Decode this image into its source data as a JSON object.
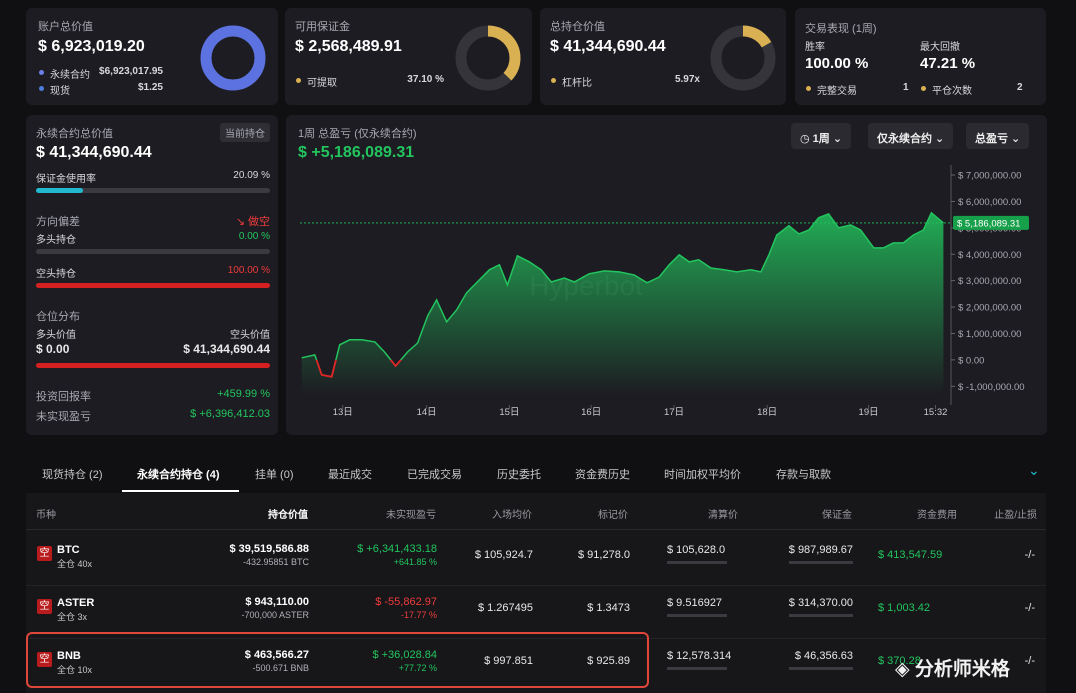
{
  "cards": {
    "account": {
      "title": "账户总价值",
      "value": "$ 6,923,019.20",
      "perp_label": "永续合约",
      "perp": {
        "value": 6923017.95,
        "label": "$6,923,017.95"
      },
      "spot_label": "现货",
      "spot": {
        "value": 1.25,
        "label": "$1.25"
      }
    },
    "margin": {
      "title": "可用保证金",
      "value": "$ 2,568,489.91",
      "withdraw_label": "可提取",
      "withdraw": {
        "value": 37.1,
        "label": "37.10 %"
      }
    },
    "position": {
      "title": "总持仓价值",
      "value": "$ 41,344,690.44",
      "leverage_label": "杠杆比",
      "leverage": {
        "value": 5.97,
        "label": "5.97x"
      }
    },
    "performance": {
      "title": "交易表现 (1周)",
      "winrate_label": "胜率",
      "winrate": "100.00 %",
      "drawdown_label": "最大回撤",
      "drawdown": "47.21 %",
      "trades_label": "完整交易",
      "trades": "1",
      "closes_label": "平仓次数",
      "closes": "2"
    }
  },
  "perp_panel": {
    "title": "永续合约总价值",
    "badge": "当前持仓",
    "value": "$ 41,344,690.44",
    "usage_label": "保证金使用率",
    "usage": {
      "value": 20.09,
      "label": "20.09 %"
    },
    "bias_label": "方向偏差",
    "bias": "做空",
    "long_label": "多头持仓",
    "long": {
      "value": 0,
      "label": "0.00 %"
    },
    "short_label": "空头持仓",
    "short": {
      "value": 100,
      "label": "100.00 %"
    },
    "dist_label": "仓位分布",
    "long_value_label": "多头价值",
    "short_value_label": "空头价值",
    "long_value": "$ 0.00",
    "short_value": "$ 41,344,690.44",
    "roi_label": "投资回报率",
    "roi": "+459.99 %",
    "upnl_label": "未实现盈亏",
    "upnl": "$ +6,396,412.03"
  },
  "controls": [
    "1周",
    "仅永续合约",
    "总盈亏"
  ],
  "chart_data": {
    "type": "area",
    "title": "1周 总盈亏 (仅永续合约)",
    "subtitle": "$ +5,186,089.31",
    "watermark": "Hyperbot",
    "current_label": "$ 5,186,089.31",
    "x": [
      -11.9,
      -8.1,
      -6.1,
      -3.2,
      -0.9,
      2.0,
      5.5,
      9.3,
      12.1,
      15.3,
      18.8,
      21.7,
      24.6,
      27.2,
      30.1,
      33.0,
      35.9,
      39.0,
      42.5,
      45.4,
      47.7,
      50.6,
      54.1,
      57.5,
      60.4,
      64.2,
      67.1,
      71.4,
      75.8,
      80.1,
      84.4,
      88.2,
      91.7,
      94.6,
      97.5,
      100.4,
      103.2,
      106.7,
      110.5,
      114.2,
      118.3,
      121.2,
      123.5,
      125.8,
      129.3,
      132.2,
      135.1,
      137.9,
      140.8,
      143.7,
      147.2,
      150.1,
      153.9,
      156.7,
      159.6,
      162.5,
      165.4,
      168.3,
      170.6,
      174.1
    ],
    "series": [
      {
        "color": "#22c55e",
        "values": [
          80000,
          190000,
          -570000,
          -640000,
          570000,
          760000,
          760000,
          680000,
          300000,
          -230000,
          300000,
          640000,
          1670000,
          2270000,
          1440000,
          1890000,
          2540000,
          2950000,
          3410000,
          3600000,
          2840000,
          3940000,
          3710000,
          3410000,
          2950000,
          3100000,
          2950000,
          3260000,
          3370000,
          3330000,
          3220000,
          2920000,
          3140000,
          3600000,
          3980000,
          3710000,
          3790000,
          3480000,
          3410000,
          3330000,
          3410000,
          3330000,
          3980000,
          4730000,
          5080000,
          4770000,
          4920000,
          5380000,
          5530000,
          5000000,
          5110000,
          4920000,
          4240000,
          4240000,
          4430000,
          4430000,
          4730000,
          4920000,
          5570000,
          5186089.31
        ]
      }
    ],
    "negative_color": "#e02424",
    "xlim": [
      -12.4,
      176
    ],
    "xticks": [
      {
        "value": 0,
        "label": "13日"
      },
      {
        "value": 24.3,
        "label": "14日"
      },
      {
        "value": 48.3,
        "label": "15日"
      },
      {
        "value": 72,
        "label": "16日"
      },
      {
        "value": 96,
        "label": "17日"
      },
      {
        "value": 123,
        "label": "18日"
      },
      {
        "value": 152.4,
        "label": "19日"
      },
      {
        "value": 171.8,
        "label": "15:32"
      }
    ],
    "ylim": [
      -1330000,
      7380000
    ],
    "yticks": [
      {
        "value": 7000000,
        "label": "$ 7,000,000.00"
      },
      {
        "value": 6000000,
        "label": "$ 6,000,000.00"
      },
      {
        "value": 5000000,
        "label": "$ 5,000,000.00"
      },
      {
        "value": 4000000,
        "label": "$ 4,000,000.00"
      },
      {
        "value": 3000000,
        "label": "$ 3,000,000.00"
      },
      {
        "value": 2000000,
        "label": "$ 2,000,000.00"
      },
      {
        "value": 1000000,
        "label": "$ 1,000,000.00"
      },
      {
        "value": 0,
        "label": "$ 0.00"
      },
      {
        "value": -1000000,
        "label": "$ -1,000,000.00"
      }
    ]
  },
  "tabs": [
    "现货持仓 (2)",
    "永续合约持仓 (4)",
    "挂单 (0)",
    "最近成交",
    "已完成交易",
    "历史委托",
    "资金费历史",
    "时间加权平均价",
    "存款与取款"
  ],
  "table": {
    "headers": [
      "币种",
      "持仓价值",
      "未实现盈亏",
      "入场均价",
      "标记价",
      "清算价",
      "保证金",
      "资金费用",
      "止盈/止损"
    ],
    "rows": [
      {
        "side": "空",
        "symbol": "BTC",
        "mode": "全仓 40x",
        "position_value": "$ 39,519,586.88",
        "size": "-432.95851 BTC",
        "pnl": "$ +6,341,433.18",
        "pnl_pct": "+641.85 %",
        "entry": "$ 105,924.7",
        "mark": "$ 91,278.0",
        "liquidation": "$ 105,628.0",
        "margin": "$ 987,989.67",
        "funding": "$ 413,547.59",
        "tpsl": "-/-"
      },
      {
        "side": "空",
        "symbol": "ASTER",
        "mode": "全仓 3x",
        "position_value": "$ 943,110.00",
        "size": "-700,000 ASTER",
        "pnl": "$ -55,862.97",
        "pnl_pct": "-17.77 %",
        "entry": "$ 1.267495",
        "mark": "$ 1.3473",
        "liquidation": "$ 9.516927",
        "margin": "$ 314,370.00",
        "funding": "$ 1,003.42",
        "tpsl": "-/-"
      },
      {
        "side": "空",
        "symbol": "BNB",
        "mode": "全仓 10x",
        "position_value": "$ 463,566.27",
        "size": "-500.671 BNB",
        "pnl": "$ +36,028.84",
        "pnl_pct": "+77.72 %",
        "entry": "$ 997.851",
        "mark": "$ 925.89",
        "liquidation": "$ 12,578.314",
        "margin": "$ 46,356.63",
        "funding": "$ 370.28",
        "tpsl": "-/-"
      }
    ]
  },
  "watermark": "分析师米格"
}
